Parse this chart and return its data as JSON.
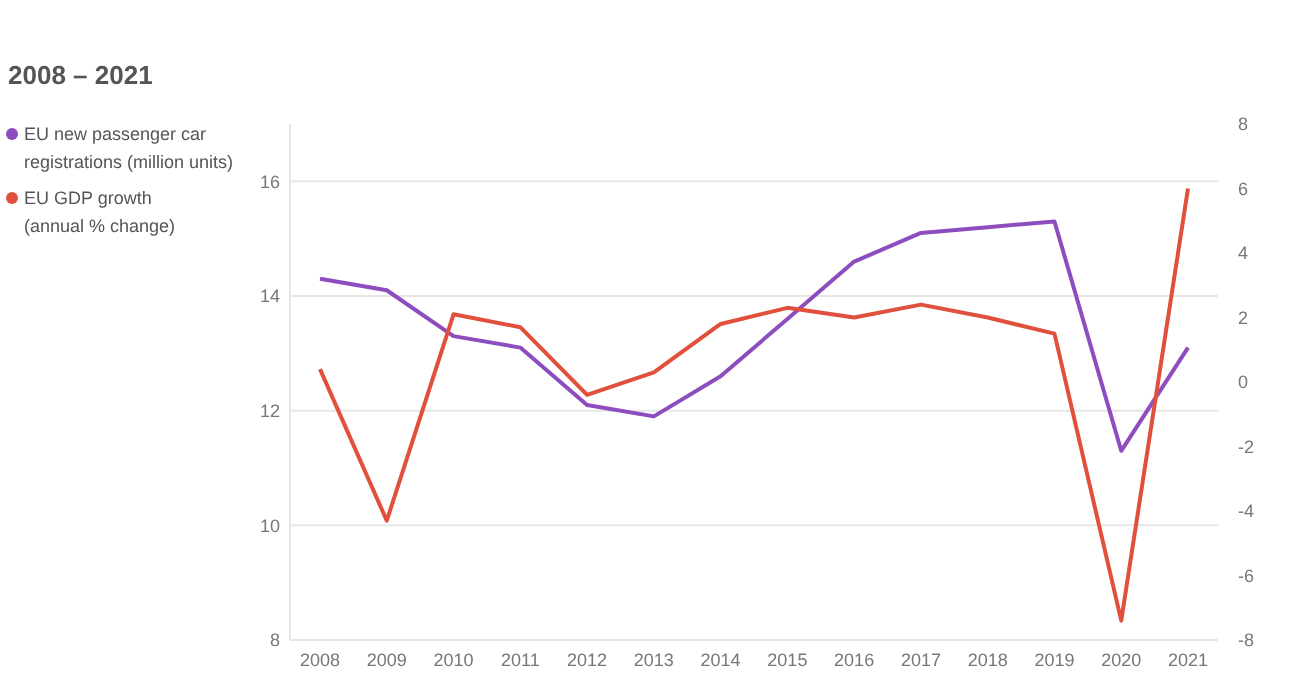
{
  "chart_data": {
    "type": "line",
    "title": "2008 – 2021",
    "categories": [
      "2008",
      "2009",
      "2010",
      "2011",
      "2012",
      "2013",
      "2014",
      "2015",
      "2016",
      "2017",
      "2018",
      "2019",
      "2020",
      "2021"
    ],
    "series": [
      {
        "name": "EU new passenger car registrations (million units)",
        "color": "#8e4dbf",
        "values": [
          14.3,
          14.1,
          13.3,
          13.1,
          12.1,
          11.9,
          12.6,
          13.6,
          14.6,
          15.1,
          15.2,
          15.3,
          11.3,
          13.1
        ]
      },
      {
        "name": "EU GDP growth (annual % change)",
        "color": "#e0503c",
        "axis": "y2",
        "values": [
          0.4,
          -4.3,
          2.1,
          1.7,
          -0.4,
          0.3,
          1.8,
          2.3,
          2.0,
          2.4,
          2.0,
          1.5,
          -7.4,
          6.0
        ]
      }
    ],
    "ylim": [
      8,
      17
    ],
    "yticks": [
      8,
      10,
      12,
      14,
      16
    ],
    "y2lim": [
      -8,
      8
    ],
    "y2ticks": [
      -8,
      -6,
      -4,
      -2,
      0,
      2,
      4,
      6,
      8
    ],
    "grid": "y",
    "legend": "left",
    "marker": "none",
    "line_style": "solid"
  }
}
